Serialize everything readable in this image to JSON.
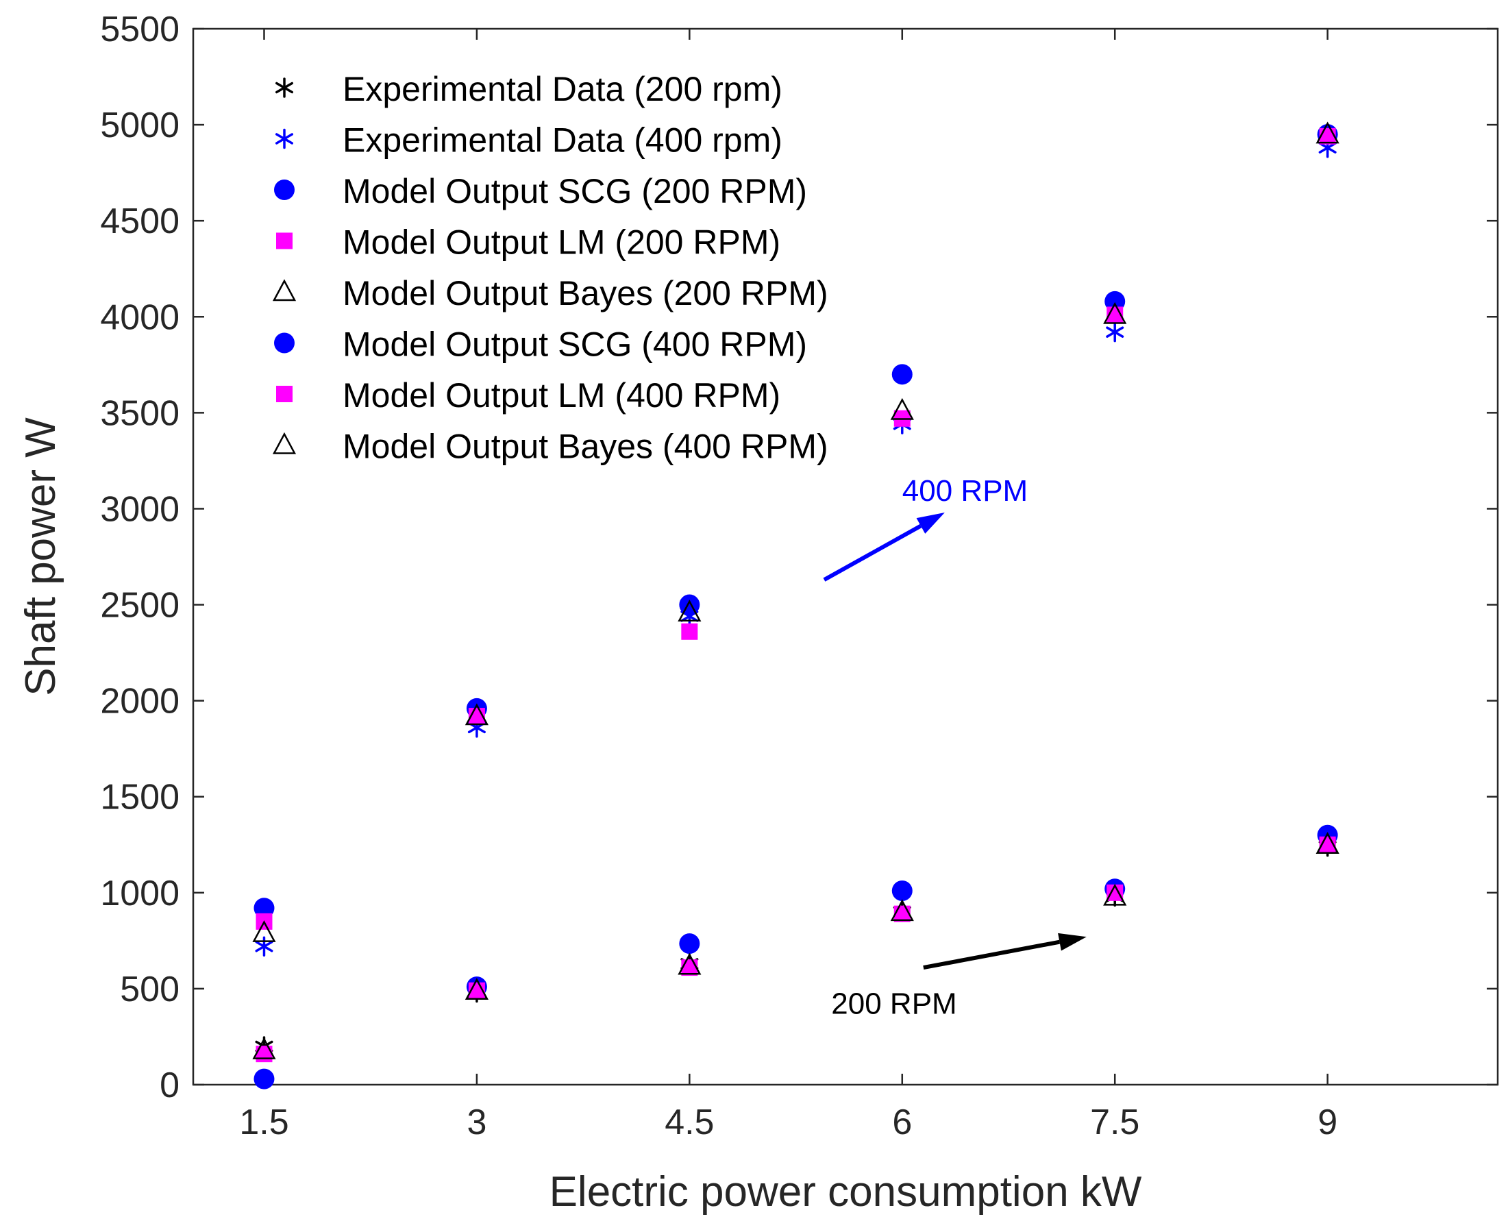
{
  "chart_data": {
    "type": "scatter",
    "title": "",
    "xlabel": "Electric power consumption kW",
    "ylabel": "Shaft power W",
    "x": [
      1.5,
      3,
      4.5,
      6,
      7.5,
      9
    ],
    "xlim": [
      1,
      10.2
    ],
    "ylim": [
      0,
      5500
    ],
    "xticks": [
      1.5,
      3,
      4.5,
      6,
      7.5,
      9
    ],
    "xtick_labels": [
      "1.5",
      "3",
      "4.5",
      "6",
      "7.5",
      "9"
    ],
    "yticks": [
      0,
      500,
      1000,
      1500,
      2000,
      2500,
      3000,
      3500,
      4000,
      4500,
      5000,
      5500
    ],
    "ytick_labels": [
      "0",
      "500",
      "1000",
      "1500",
      "2000",
      "2500",
      "3000",
      "3500",
      "4000",
      "4500",
      "5000",
      "5500"
    ],
    "grid": false,
    "legend_position": "top-left",
    "series": [
      {
        "name": "Experimental Data (200 rpm)",
        "marker": "asterisk",
        "color": "#000000",
        "values": [
          200,
          480,
          630,
          900,
          980,
          1240
        ]
      },
      {
        "name": "Experimental Data (400 rpm)",
        "marker": "asterisk",
        "color": "#0000ff",
        "values": [
          720,
          1860,
          2440,
          3440,
          3920,
          4880
        ]
      },
      {
        "name": "Model Output SCG (200 RPM)",
        "marker": "circle",
        "color": "#0000ff",
        "values": [
          30,
          510,
          735,
          1010,
          1020,
          1300
        ]
      },
      {
        "name": "Model Output LM (200 RPM)",
        "marker": "square",
        "color": "#ff00ff",
        "values": [
          160,
          490,
          610,
          890,
          1000,
          1250
        ]
      },
      {
        "name": "Model Output Bayes (200 RPM)",
        "marker": "triangle",
        "color": "#000000",
        "values": [
          180,
          490,
          620,
          900,
          980,
          1250
        ]
      },
      {
        "name": "Model Output SCG (400 RPM)",
        "marker": "circle",
        "color": "#0000ff",
        "values": [
          920,
          1960,
          2500,
          3700,
          4080,
          4950
        ]
      },
      {
        "name": "Model Output LM (400 RPM)",
        "marker": "square",
        "color": "#ff00ff",
        "values": [
          850,
          1920,
          2360,
          3470,
          4010,
          4940
        ]
      },
      {
        "name": "Model Output Bayes (400 RPM)",
        "marker": "triangle",
        "color": "#000000",
        "values": [
          790,
          1920,
          2460,
          3510,
          4010,
          4950
        ]
      }
    ],
    "annotations": [
      {
        "text": "400 RPM",
        "color": "#0000ff",
        "arrow_from": [
          5.45,
          2630
        ],
        "arrow_to": [
          6.3,
          2980
        ],
        "text_at": [
          6.0,
          3040
        ]
      },
      {
        "text": "200 RPM",
        "color": "#000000",
        "arrow_from": [
          6.15,
          610
        ],
        "arrow_to": [
          7.3,
          770
        ],
        "text_at": [
          5.5,
          370
        ]
      }
    ]
  }
}
